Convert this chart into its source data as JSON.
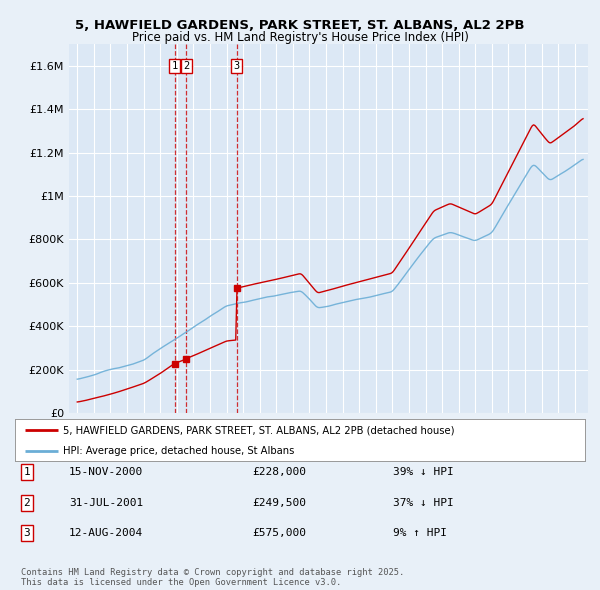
{
  "title1": "5, HAWFIELD GARDENS, PARK STREET, ST. ALBANS, AL2 2PB",
  "title2": "Price paid vs. HM Land Registry's House Price Index (HPI)",
  "background_color": "#e8f0f8",
  "plot_bg_color": "#dce8f5",
  "grid_color": "#ffffff",
  "transactions": [
    {
      "num": 1,
      "date_label": "15-NOV-2000",
      "price": 228000,
      "pct": "39%",
      "dir": "↓",
      "x_year": 2000.88
    },
    {
      "num": 2,
      "date_label": "31-JUL-2001",
      "price": 249500,
      "pct": "37%",
      "dir": "↓",
      "x_year": 2001.58
    },
    {
      "num": 3,
      "date_label": "12-AUG-2004",
      "price": 575000,
      "pct": "9%",
      "dir": "↑",
      "x_year": 2004.62
    }
  ],
  "legend_house": "5, HAWFIELD GARDENS, PARK STREET, ST. ALBANS, AL2 2PB (detached house)",
  "legend_hpi": "HPI: Average price, detached house, St Albans",
  "footer": "Contains HM Land Registry data © Crown copyright and database right 2025.\nThis data is licensed under the Open Government Licence v3.0.",
  "hpi_color": "#6baed6",
  "price_color": "#cc0000",
  "marker_color": "#cc0000",
  "dashed_color": "#cc0000",
  "yticks": [
    0,
    200000,
    400000,
    600000,
    800000,
    1000000,
    1200000,
    1400000,
    1600000
  ],
  "ylabels": [
    "£0",
    "£200K",
    "£400K",
    "£600K",
    "£800K",
    "£1M",
    "£1.2M",
    "£1.4M",
    "£1.6M"
  ],
  "ymax": 1700000,
  "xmin": 1994.5,
  "xmax": 2025.8
}
